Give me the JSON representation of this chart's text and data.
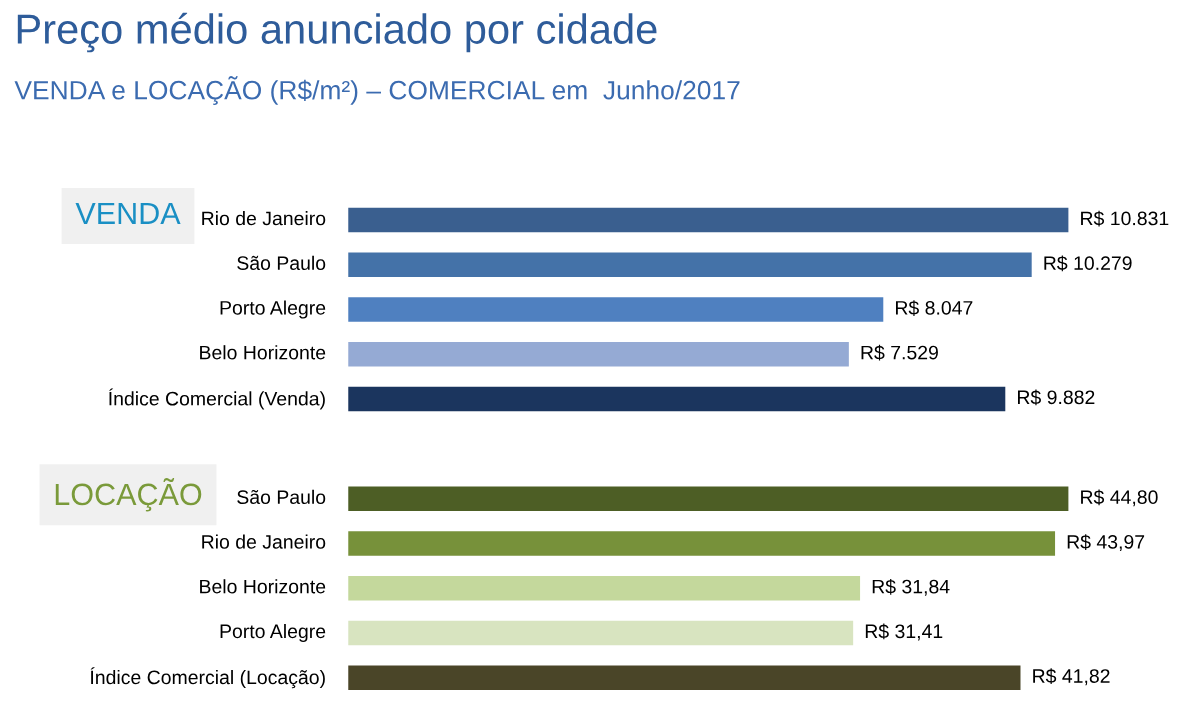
{
  "chart_data": [
    {
      "type": "bar",
      "orientation": "horizontal",
      "title": "VENDA",
      "annotations": [
        "Preço médio anunciado por cidade",
        "VENDA e LOCAÇÃO (R$/m²) – COMERCIAL em  Junho/2017"
      ],
      "categories": [
        "Rio de Janeiro",
        "São Paulo",
        "Porto Alegre",
        "Belo Horizonte",
        "Índice Comercial (Venda)"
      ],
      "values": [
        10831,
        10279,
        8047,
        7529,
        9882
      ],
      "value_labels": [
        "R$ 10.831",
        "R$ 10.279",
        "R$ 8.047",
        "R$ 7.529",
        "R$ 9.882"
      ],
      "colors": [
        "#3a5f8f",
        "#4472a8",
        "#4f80c0",
        "#95aad4",
        "#1b355e"
      ]
    },
    {
      "type": "bar",
      "orientation": "horizontal",
      "title": "LOCAÇÃO",
      "categories": [
        "São Paulo",
        "Rio de Janeiro",
        "Belo Horizonte",
        "Porto Alegre",
        "Índice Comercial (Locação)"
      ],
      "values": [
        44.8,
        43.97,
        31.84,
        31.41,
        41.82
      ],
      "value_labels": [
        "R$ 44,80",
        "R$ 43,97",
        "R$ 31,84",
        "R$ 31,41",
        "R$ 41,82"
      ],
      "colors": [
        "#4d5e25",
        "#77913a",
        "#c4d89c",
        "#d8e4c0",
        "#4a4528"
      ]
    }
  ]
}
